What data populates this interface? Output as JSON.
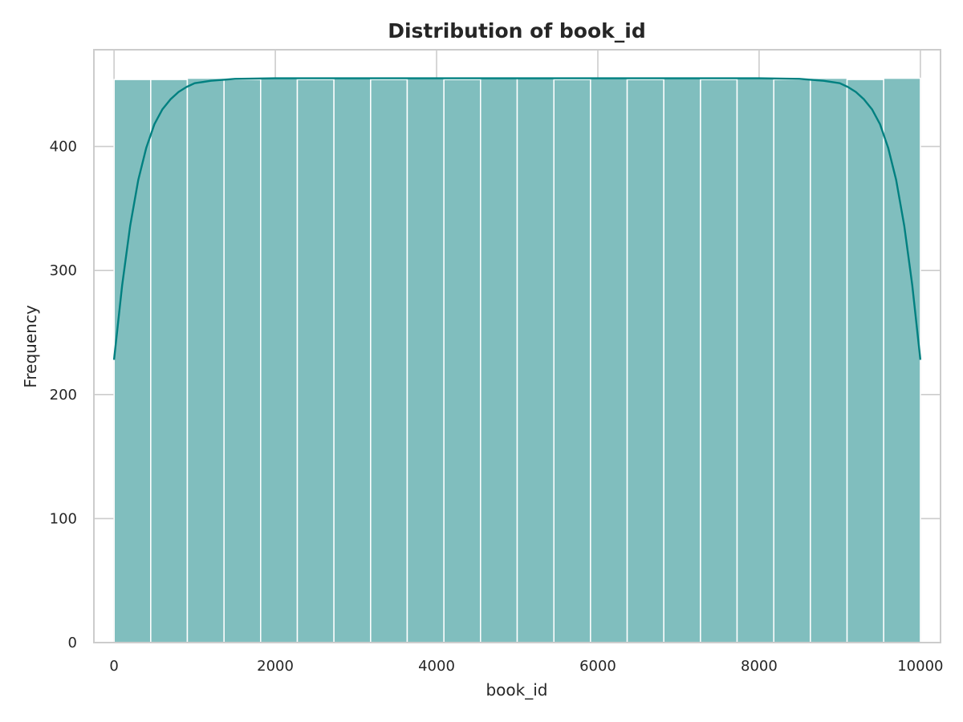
{
  "chart_data": {
    "type": "bar",
    "subtype": "histogram-with-kde",
    "title": "Distribution of book_id",
    "xlabel": "book_id",
    "ylabel": "Frequency",
    "xlim": [
      -250,
      10250
    ],
    "ylim": [
      0,
      478
    ],
    "xticks": [
      0,
      2000,
      4000,
      6000,
      8000,
      10000
    ],
    "yticks": [
      0,
      100,
      200,
      300,
      400
    ],
    "grid": true,
    "bins": [
      {
        "x0": 1,
        "x1": 455,
        "count": 454
      },
      {
        "x0": 455,
        "x1": 909,
        "count": 454
      },
      {
        "x0": 909,
        "x1": 1364,
        "count": 455
      },
      {
        "x0": 1364,
        "x1": 1818,
        "count": 454
      },
      {
        "x0": 1818,
        "x1": 2273,
        "count": 455
      },
      {
        "x0": 2273,
        "x1": 2727,
        "count": 454
      },
      {
        "x0": 2727,
        "x1": 3182,
        "count": 455
      },
      {
        "x0": 3182,
        "x1": 3636,
        "count": 454
      },
      {
        "x0": 3636,
        "x1": 4091,
        "count": 455
      },
      {
        "x0": 4091,
        "x1": 4545,
        "count": 454
      },
      {
        "x0": 4545,
        "x1": 5000,
        "count": 455
      },
      {
        "x0": 5000,
        "x1": 5455,
        "count": 455
      },
      {
        "x0": 5455,
        "x1": 5909,
        "count": 454
      },
      {
        "x0": 5909,
        "x1": 6364,
        "count": 455
      },
      {
        "x0": 6364,
        "x1": 6818,
        "count": 454
      },
      {
        "x0": 6818,
        "x1": 7273,
        "count": 455
      },
      {
        "x0": 7273,
        "x1": 7727,
        "count": 454
      },
      {
        "x0": 7727,
        "x1": 8182,
        "count": 455
      },
      {
        "x0": 8182,
        "x1": 8636,
        "count": 454
      },
      {
        "x0": 8636,
        "x1": 9091,
        "count": 455
      },
      {
        "x0": 9091,
        "x1": 9545,
        "count": 454
      },
      {
        "x0": 9545,
        "x1": 10000,
        "count": 455
      }
    ],
    "kde": {
      "x": [
        0,
        100,
        200,
        300,
        400,
        500,
        600,
        700,
        800,
        900,
        1000,
        1200,
        1500,
        2000,
        3000,
        5000,
        7000,
        8000,
        8500,
        8800,
        9000,
        9100,
        9200,
        9300,
        9400,
        9500,
        9600,
        9700,
        9800,
        9900,
        10000
      ],
      "y": [
        228,
        288,
        336,
        373,
        399,
        418,
        430,
        438,
        444,
        448,
        451,
        453,
        454.5,
        455,
        455,
        455,
        455,
        455,
        454.5,
        453,
        451,
        448,
        444,
        438,
        430,
        418,
        399,
        373,
        336,
        288,
        228
      ]
    },
    "colors": {
      "bar_fill": "#80bebe",
      "bar_edge": "#ffffff",
      "kde_line": "#008080",
      "grid": "#cccccc",
      "axes_edge": "#cccccc",
      "text": "#262626"
    }
  }
}
